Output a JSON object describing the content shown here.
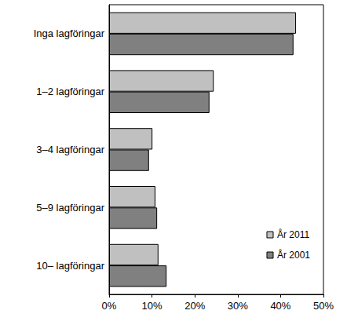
{
  "chart_data": {
    "type": "bar",
    "orientation": "horizontal",
    "categories": [
      "Inga lagföringar",
      "1–2 lagföringar",
      "3–4 lagföringar",
      "5–9 lagföringar",
      "10– lagföringar"
    ],
    "series": [
      {
        "name": "År 2011",
        "color": "#c0c0c0",
        "values": [
          43.6,
          24.4,
          10.1,
          10.8,
          11.5
        ]
      },
      {
        "name": "År 2001",
        "color": "#808080",
        "values": [
          43.0,
          23.4,
          9.3,
          11.2,
          13.4
        ]
      }
    ],
    "xlim": [
      0,
      50
    ],
    "xticks": [
      {
        "value": 0,
        "label": "0%"
      },
      {
        "value": 10,
        "label": "10%"
      },
      {
        "value": 20,
        "label": "20%"
      },
      {
        "value": 30,
        "label": "30%"
      },
      {
        "value": 40,
        "label": "40%"
      },
      {
        "value": 50,
        "label": "50%"
      }
    ],
    "grid": false,
    "legend": "bottom right"
  }
}
